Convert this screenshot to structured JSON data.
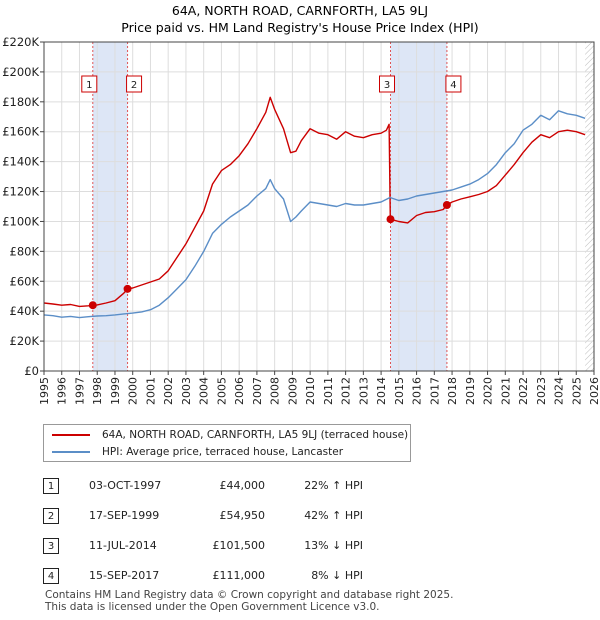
{
  "chart_data": {
    "type": "line",
    "title": "64A, NORTH ROAD, CARNFORTH, LA5 9LJ",
    "subtitle": "Price paid vs. HM Land Registry's House Price Index (HPI)",
    "xlim": [
      1995,
      2026
    ],
    "ylim": [
      0,
      220000
    ],
    "x_ticks": [
      "1995",
      "1996",
      "1997",
      "1998",
      "1999",
      "2000",
      "2001",
      "2002",
      "2003",
      "2004",
      "2005",
      "2006",
      "2007",
      "2008",
      "2009",
      "2010",
      "2011",
      "2012",
      "2013",
      "2014",
      "2015",
      "2016",
      "2017",
      "2018",
      "2019",
      "2020",
      "2021",
      "2022",
      "2023",
      "2024",
      "2025",
      "2026"
    ],
    "y_ticks": [
      {
        "value": 0,
        "label": "£0"
      },
      {
        "value": 20000,
        "label": "£20K"
      },
      {
        "value": 40000,
        "label": "£40K"
      },
      {
        "value": 60000,
        "label": "£60K"
      },
      {
        "value": 80000,
        "label": "£80K"
      },
      {
        "value": 100000,
        "label": "£100K"
      },
      {
        "value": 120000,
        "label": "£120K"
      },
      {
        "value": 140000,
        "label": "£140K"
      },
      {
        "value": 160000,
        "label": "£160K"
      },
      {
        "value": 180000,
        "label": "£180K"
      },
      {
        "value": 200000,
        "label": "£200K"
      },
      {
        "value": 220000,
        "label": "£220K"
      }
    ],
    "series": [
      {
        "name": "64A, NORTH ROAD, CARNFORTH, LA5 9LJ (terraced house)",
        "color": "#cc0000",
        "points": [
          [
            1995.0,
            45500
          ],
          [
            1995.5,
            44800
          ],
          [
            1996.0,
            44000
          ],
          [
            1996.5,
            44500
          ],
          [
            1997.0,
            43200
          ],
          [
            1997.5,
            43600
          ],
          [
            1997.75,
            44000
          ],
          [
            1998.0,
            44200
          ],
          [
            1998.5,
            45500
          ],
          [
            1999.0,
            47000
          ],
          [
            1999.5,
            52000
          ],
          [
            1999.71,
            54950
          ],
          [
            2000.0,
            55500
          ],
          [
            2000.5,
            57500
          ],
          [
            2001.0,
            59500
          ],
          [
            2001.5,
            61500
          ],
          [
            2002.0,
            67000
          ],
          [
            2002.5,
            76000
          ],
          [
            2003.0,
            85000
          ],
          [
            2003.5,
            96000
          ],
          [
            2004.0,
            107000
          ],
          [
            2004.5,
            125000
          ],
          [
            2005.0,
            134000
          ],
          [
            2005.5,
            138000
          ],
          [
            2006.0,
            144000
          ],
          [
            2006.5,
            152000
          ],
          [
            2007.0,
            162000
          ],
          [
            2007.5,
            173000
          ],
          [
            2007.75,
            183000
          ],
          [
            2008.0,
            175000
          ],
          [
            2008.5,
            162000
          ],
          [
            2008.9,
            146000
          ],
          [
            2009.2,
            147000
          ],
          [
            2009.5,
            154000
          ],
          [
            2010.0,
            162000
          ],
          [
            2010.5,
            159000
          ],
          [
            2011.0,
            158000
          ],
          [
            2011.5,
            155000
          ],
          [
            2012.0,
            160000
          ],
          [
            2012.5,
            157000
          ],
          [
            2013.0,
            156000
          ],
          [
            2013.5,
            158000
          ],
          [
            2014.0,
            159000
          ],
          [
            2014.3,
            161000
          ],
          [
            2014.45,
            165000
          ],
          [
            2014.52,
            101500
          ],
          [
            2015.0,
            100000
          ],
          [
            2015.5,
            99000
          ],
          [
            2016.0,
            104000
          ],
          [
            2016.5,
            106000
          ],
          [
            2017.0,
            106500
          ],
          [
            2017.5,
            108000
          ],
          [
            2017.71,
            111000
          ],
          [
            2018.0,
            113000
          ],
          [
            2018.5,
            115000
          ],
          [
            2019.0,
            116500
          ],
          [
            2019.5,
            118000
          ],
          [
            2020.0,
            120000
          ],
          [
            2020.5,
            124000
          ],
          [
            2021.0,
            131000
          ],
          [
            2021.5,
            138000
          ],
          [
            2022.0,
            146000
          ],
          [
            2022.5,
            153000
          ],
          [
            2023.0,
            158000
          ],
          [
            2023.5,
            156000
          ],
          [
            2024.0,
            160000
          ],
          [
            2024.5,
            161000
          ],
          [
            2025.0,
            160000
          ],
          [
            2025.5,
            158000
          ]
        ]
      },
      {
        "name": "HPI: Average price, terraced house, Lancaster",
        "color": "#5b8ec7",
        "points": [
          [
            1995.0,
            37500
          ],
          [
            1995.5,
            37000
          ],
          [
            1996.0,
            36000
          ],
          [
            1996.5,
            36500
          ],
          [
            1997.0,
            35700
          ],
          [
            1997.5,
            36300
          ],
          [
            1998.0,
            36800
          ],
          [
            1998.5,
            37000
          ],
          [
            1999.0,
            37500
          ],
          [
            1999.5,
            38200
          ],
          [
            2000.0,
            38700
          ],
          [
            2000.5,
            39500
          ],
          [
            2001.0,
            41000
          ],
          [
            2001.5,
            44000
          ],
          [
            2002.0,
            49000
          ],
          [
            2002.5,
            55000
          ],
          [
            2003.0,
            61000
          ],
          [
            2003.5,
            70000
          ],
          [
            2004.0,
            80000
          ],
          [
            2004.5,
            92000
          ],
          [
            2005.0,
            98000
          ],
          [
            2005.5,
            103000
          ],
          [
            2006.0,
            107000
          ],
          [
            2006.5,
            111000
          ],
          [
            2007.0,
            117000
          ],
          [
            2007.5,
            122000
          ],
          [
            2007.75,
            128000
          ],
          [
            2008.0,
            122000
          ],
          [
            2008.5,
            115000
          ],
          [
            2008.9,
            100000
          ],
          [
            2009.2,
            103000
          ],
          [
            2009.5,
            107000
          ],
          [
            2010.0,
            113000
          ],
          [
            2010.5,
            112000
          ],
          [
            2011.0,
            111000
          ],
          [
            2011.5,
            110000
          ],
          [
            2012.0,
            112000
          ],
          [
            2012.5,
            111000
          ],
          [
            2013.0,
            111000
          ],
          [
            2013.5,
            112000
          ],
          [
            2014.0,
            113000
          ],
          [
            2014.5,
            116000
          ],
          [
            2015.0,
            114000
          ],
          [
            2015.5,
            115000
          ],
          [
            2016.0,
            117000
          ],
          [
            2016.5,
            118000
          ],
          [
            2017.0,
            119000
          ],
          [
            2017.5,
            120000
          ],
          [
            2018.0,
            121000
          ],
          [
            2018.5,
            123000
          ],
          [
            2019.0,
            125000
          ],
          [
            2019.5,
            128000
          ],
          [
            2020.0,
            132000
          ],
          [
            2020.5,
            138000
          ],
          [
            2021.0,
            146000
          ],
          [
            2021.5,
            152000
          ],
          [
            2022.0,
            161000
          ],
          [
            2022.5,
            165000
          ],
          [
            2023.0,
            171000
          ],
          [
            2023.5,
            168000
          ],
          [
            2024.0,
            174000
          ],
          [
            2024.5,
            172000
          ],
          [
            2025.0,
            171000
          ],
          [
            2025.5,
            169000
          ]
        ]
      }
    ],
    "transactions": [
      {
        "num": "1",
        "x": 1997.75,
        "price": 44000
      },
      {
        "num": "2",
        "x": 1999.71,
        "price": 54950
      },
      {
        "num": "3",
        "x": 2014.53,
        "price": 101500
      },
      {
        "num": "4",
        "x": 2017.71,
        "price": 111000
      }
    ],
    "shaded_ranges": [
      [
        1997.75,
        1999.71
      ],
      [
        2014.53,
        2017.71
      ]
    ],
    "hatch_from": 2025.5
  },
  "legend": {
    "red_label": "64A, NORTH ROAD, CARNFORTH, LA5 9LJ (terraced house)",
    "blue_label": "HPI: Average price, terraced house, Lancaster"
  },
  "table": [
    {
      "num": "1",
      "date": "03-OCT-1997",
      "price": "£44,000",
      "hpi": "22% ↑ HPI"
    },
    {
      "num": "2",
      "date": "17-SEP-1999",
      "price": "£54,950",
      "hpi": "42% ↑ HPI"
    },
    {
      "num": "3",
      "date": "11-JUL-2014",
      "price": "£101,500",
      "hpi": "13% ↓ HPI"
    },
    {
      "num": "4",
      "date": "15-SEP-2017",
      "price": "£111,000",
      "hpi": "8% ↓ HPI"
    }
  ],
  "footer": {
    "line1": "Contains HM Land Registry data © Crown copyright and database right 2025.",
    "line2": "This data is licensed under the Open Government Licence v3.0."
  }
}
